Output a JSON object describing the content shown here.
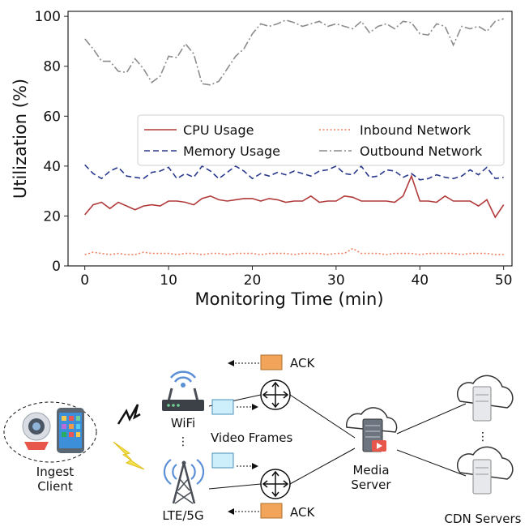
{
  "chart_data": {
    "type": "line",
    "xlabel": "Monitoring Time (min)",
    "ylabel": "Utilization (%)",
    "xlim": [
      -2,
      51
    ],
    "ylim": [
      0,
      102
    ],
    "xticks": [
      0,
      10,
      20,
      30,
      40,
      50
    ],
    "yticks": [
      0,
      20,
      40,
      60,
      80,
      100
    ],
    "legend_placement": "center-right",
    "grid": false,
    "series": [
      {
        "name": "CPU Usage",
        "color": "#b03a3a",
        "style": "solid",
        "x": [
          0,
          1,
          2,
          3,
          4,
          5,
          6,
          7,
          8,
          9,
          10,
          11,
          12,
          13,
          14,
          15,
          16,
          17,
          18,
          19,
          20,
          21,
          22,
          23,
          24,
          25,
          26,
          27,
          28,
          29,
          30,
          31,
          32,
          33,
          34,
          35,
          36,
          37,
          38,
          39,
          40,
          41,
          42,
          43,
          44,
          45,
          46,
          47,
          48,
          49,
          50
        ],
        "values": [
          20.5,
          24.5,
          25.5,
          23,
          25.5,
          24,
          22.5,
          24,
          24.5,
          24,
          26,
          26,
          25.5,
          24.5,
          27,
          28,
          26.5,
          26,
          26.5,
          27,
          27,
          26,
          27,
          26.5,
          25.5,
          26,
          26,
          28,
          25.5,
          26,
          26,
          28,
          27.5,
          26,
          26,
          26,
          26,
          25.5,
          28,
          36,
          26,
          26,
          25.5,
          28,
          26,
          26,
          26,
          24,
          26.5,
          19.5,
          24.5
        ]
      },
      {
        "name": "Memory Usage",
        "color": "#2b3a8c",
        "style": "dashed",
        "x": [
          0,
          1,
          2,
          3,
          4,
          5,
          6,
          7,
          8,
          9,
          10,
          11,
          12,
          13,
          14,
          15,
          16,
          17,
          18,
          19,
          20,
          21,
          22,
          23,
          24,
          25,
          26,
          27,
          28,
          29,
          30,
          31,
          32,
          33,
          34,
          35,
          36,
          37,
          38,
          39,
          40,
          41,
          42,
          43,
          44,
          45,
          46,
          47,
          48,
          49,
          50
        ],
        "values": [
          40.5,
          37,
          35,
          38,
          39.5,
          36,
          35.5,
          35,
          37.5,
          38,
          39.5,
          35,
          37,
          35.5,
          40,
          38,
          35,
          37.5,
          40,
          38,
          35,
          37,
          36,
          37.5,
          36.5,
          38,
          37,
          36,
          38,
          38.5,
          40,
          37,
          36.5,
          40,
          35.5,
          36,
          38.5,
          38,
          35.5,
          37,
          34.5,
          35,
          36.5,
          35.5,
          35,
          36,
          38.5,
          36.5,
          39.5,
          35,
          35.5
        ]
      },
      {
        "name": "Inbound Network",
        "color": "#f08060",
        "style": "dotted",
        "x": [
          0,
          1,
          2,
          3,
          4,
          5,
          6,
          7,
          8,
          9,
          10,
          11,
          12,
          13,
          14,
          15,
          16,
          17,
          18,
          19,
          20,
          21,
          22,
          23,
          24,
          25,
          26,
          27,
          28,
          29,
          30,
          31,
          32,
          33,
          34,
          35,
          36,
          37,
          38,
          39,
          40,
          41,
          42,
          43,
          44,
          45,
          46,
          47,
          48,
          49,
          50
        ],
        "values": [
          4.5,
          5.5,
          5,
          4.5,
          5,
          4.5,
          4.5,
          5.5,
          5,
          5,
          5,
          4.5,
          5,
          5,
          4.5,
          5,
          5,
          4.5,
          5,
          5,
          5,
          4.5,
          5,
          5,
          5,
          4.5,
          5,
          5,
          5,
          4.5,
          5,
          5,
          7,
          5,
          5,
          5,
          4.5,
          5,
          5,
          5,
          4.5,
          5,
          5,
          5,
          5,
          4.5,
          5,
          5,
          5,
          4.5,
          4.5
        ]
      },
      {
        "name": "Outbound Network",
        "color": "#8c8c8c",
        "style": "dashdot",
        "x": [
          0,
          1,
          2,
          3,
          4,
          5,
          6,
          7,
          8,
          9,
          10,
          11,
          12,
          13,
          14,
          15,
          16,
          17,
          18,
          19,
          20,
          21,
          22,
          23,
          24,
          25,
          26,
          27,
          28,
          29,
          30,
          31,
          32,
          33,
          34,
          35,
          36,
          37,
          38,
          39,
          40,
          41,
          42,
          43,
          44,
          45,
          46,
          47,
          48,
          49,
          50
        ],
        "values": [
          91,
          87,
          82,
          82,
          78,
          77.5,
          83,
          79,
          73.5,
          76,
          84,
          83.5,
          89,
          85,
          73,
          72.5,
          74,
          79,
          84,
          87,
          93,
          97,
          96,
          97,
          98.5,
          97.5,
          96,
          97,
          98,
          96,
          97,
          96,
          95,
          98,
          93.5,
          96,
          97,
          95,
          98,
          97.5,
          93,
          92.5,
          97,
          96,
          88.5,
          96,
          95,
          96,
          94,
          98,
          99
        ]
      }
    ]
  },
  "diagram": {
    "ack_top": "ACK",
    "ack_bottom": "ACK",
    "wifi_label": "WiFi",
    "video_frames_label": "Video Frames",
    "lte_label": "LTE/5G",
    "ingest_line1": "Ingest",
    "ingest_line2": "Client",
    "media_line1": "Media",
    "media_line2": "Server",
    "cdn_label": "CDN Servers",
    "ellipsis": "⋮"
  }
}
